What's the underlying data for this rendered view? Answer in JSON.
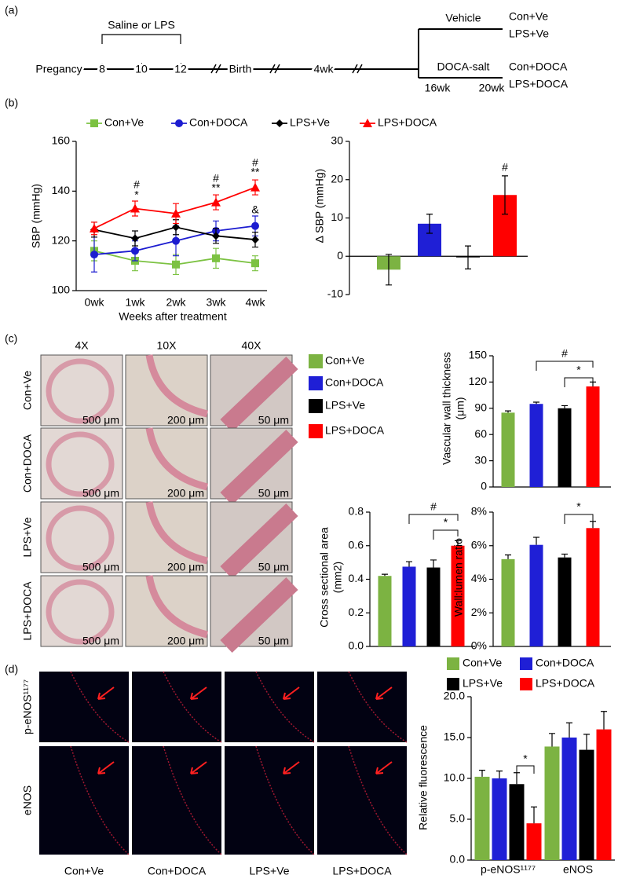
{
  "panel_labels": [
    "(a)",
    "(b)",
    "(c)",
    "(d)"
  ],
  "timeline": {
    "bracket_label": "Saline or LPS",
    "points": [
      "Pregancy",
      "8",
      "10",
      "12",
      "Birth",
      "4wk"
    ],
    "branches": {
      "vehicle": "Vehicle",
      "doca": "DOCA-salt",
      "start": "16wk",
      "end": "20wk",
      "groups": [
        "Con+Ve",
        "LPS+Ve",
        "Con+DOCA",
        "LPS+DOCA"
      ]
    }
  },
  "histology": {
    "magnifications": [
      "4X",
      "10X",
      "40X"
    ],
    "groups": [
      "Con+Ve",
      "Con+DOCA",
      "LPS+Ve",
      "LPS+DOCA"
    ],
    "scale_bars": [
      "500 μm",
      "200 μm",
      "50 μm"
    ]
  },
  "fluorescence": {
    "rows": [
      "p-eNOS¹¹⁷⁷",
      "eNOS"
    ],
    "columns": [
      "Con+Ve",
      "Con+DOCA",
      "LPS+Ve",
      "LPS+DOCA"
    ]
  },
  "chart_data": [
    {
      "type": "line",
      "y_label": "SBP (mmHg)",
      "x_label": "Weeks after treatment",
      "categories": [
        "0wk",
        "1wk",
        "2wk",
        "3wk",
        "4wk"
      ],
      "ylim": [
        100,
        160
      ],
      "yticks": [
        100,
        120,
        140,
        160
      ],
      "series": [
        {
          "name": "Con+Ve",
          "color": "#7cc242",
          "marker": "square",
          "values": [
            116,
            112,
            110.5,
            113,
            111
          ],
          "errors": [
            4,
            4,
            4,
            4,
            3
          ]
        },
        {
          "name": "Con+DOCA",
          "color": "#1c1cd0",
          "marker": "circle",
          "values": [
            114.5,
            116,
            120,
            124,
            126
          ],
          "errors": [
            7,
            4,
            6,
            4,
            4
          ]
        },
        {
          "name": "LPS+Ve",
          "color": "#000000",
          "marker": "diamond",
          "values": [
            124.5,
            121,
            125.5,
            122,
            120.5
          ],
          "errors": [
            3,
            3,
            3,
            3,
            3
          ]
        },
        {
          "name": "LPS+DOCA",
          "color": "#ff0000",
          "marker": "triangle",
          "values": [
            125,
            133,
            131,
            135.5,
            141.5
          ],
          "errors": [
            2.5,
            3,
            4,
            3,
            3
          ]
        }
      ],
      "annotations": [
        "#",
        "*",
        "#",
        "**",
        "#",
        "**",
        "&"
      ]
    },
    {
      "type": "bar",
      "y_label": [
        "Δ SBP (mmHg)"
      ],
      "ylim": [
        -10,
        30
      ],
      "yticks": [
        -10,
        0,
        10,
        20,
        30
      ],
      "colors": [
        "#7cb342",
        "#1f1fd6",
        "#000000",
        "#ff0000"
      ],
      "values": [
        -3.5,
        8.5,
        -0.3,
        16
      ],
      "errors": [
        4,
        2.5,
        3,
        5
      ],
      "annotations": [
        "#"
      ]
    },
    {
      "type": "bar",
      "y_label": [
        "Vascular wall thickness",
        "(μm)"
      ],
      "ylim": [
        0,
        150
      ],
      "yticks": [
        0,
        30,
        60,
        90,
        120,
        150
      ],
      "colors": [
        "#7cb342",
        "#1f1fd6",
        "#000000",
        "#ff0000"
      ],
      "values": [
        85,
        95,
        90,
        115
      ],
      "errors": [
        2,
        2,
        3,
        5
      ],
      "annotations": [
        "#",
        "*"
      ]
    },
    {
      "type": "bar",
      "y_label": [
        "Cross sectional area",
        "(mm2)"
      ],
      "ylim": [
        0,
        0.8
      ],
      "yticks": [
        {
          "value": 0,
          "label": "0.0"
        },
        0.2,
        0.4,
        0.6,
        0.8
      ],
      "colors": [
        "#7cb342",
        "#1f1fd6",
        "#000000",
        "#ff0000"
      ],
      "values": [
        0.42,
        0.475,
        0.47,
        0.6
      ],
      "errors": [
        0.01,
        0.03,
        0.045,
        0.03
      ],
      "annotations": [
        "#",
        "*"
      ]
    },
    {
      "type": "bar",
      "y_label": [
        "Wall:lumen ratio"
      ],
      "ylim": [
        0,
        8
      ],
      "yticks": [
        {
          "value": 0,
          "label": "0%"
        },
        {
          "value": 2,
          "label": "2%"
        },
        {
          "value": 4,
          "label": "4%"
        },
        {
          "value": 6,
          "label": "6%"
        },
        {
          "value": 8,
          "label": "8%"
        }
      ],
      "colors": [
        "#7cb342",
        "#1f1fd6",
        "#000000",
        "#ff0000"
      ],
      "values": [
        5.2,
        6.05,
        5.3,
        7.05
      ],
      "errors": [
        0.25,
        0.45,
        0.2,
        0.4
      ],
      "annotations": [
        "*"
      ]
    },
    {
      "type": "grouped-bar",
      "y_label": [
        "Relative fluorescence"
      ],
      "categories": [
        "p-eNOS¹¹⁷⁷",
        "eNOS"
      ],
      "ylim": [
        0,
        20
      ],
      "yticks": [
        {
          "value": 0,
          "label": "0.0"
        },
        {
          "value": 5,
          "label": "5.0"
        },
        {
          "value": 10,
          "label": "10.0"
        },
        {
          "value": 15,
          "label": "15.0"
        },
        {
          "value": 20,
          "label": "20.0"
        }
      ],
      "series": [
        {
          "name": "Con+Ve",
          "color": "#7cb342",
          "values": [
            10.2,
            13.9
          ],
          "errors": [
            0.8,
            1.6
          ]
        },
        {
          "name": "Con+DOCA",
          "color": "#1f1fd6",
          "values": [
            10,
            15
          ],
          "errors": [
            0.9,
            1.8
          ]
        },
        {
          "name": "LPS+Ve",
          "color": "#000000",
          "values": [
            9.3,
            13.5
          ],
          "errors": [
            1.4,
            1.9
          ]
        },
        {
          "name": "LPS+DOCA",
          "color": "#ff0000",
          "values": [
            4.5,
            16
          ],
          "errors": [
            2,
            2.2
          ]
        }
      ],
      "annotations": [
        "*"
      ]
    }
  ]
}
